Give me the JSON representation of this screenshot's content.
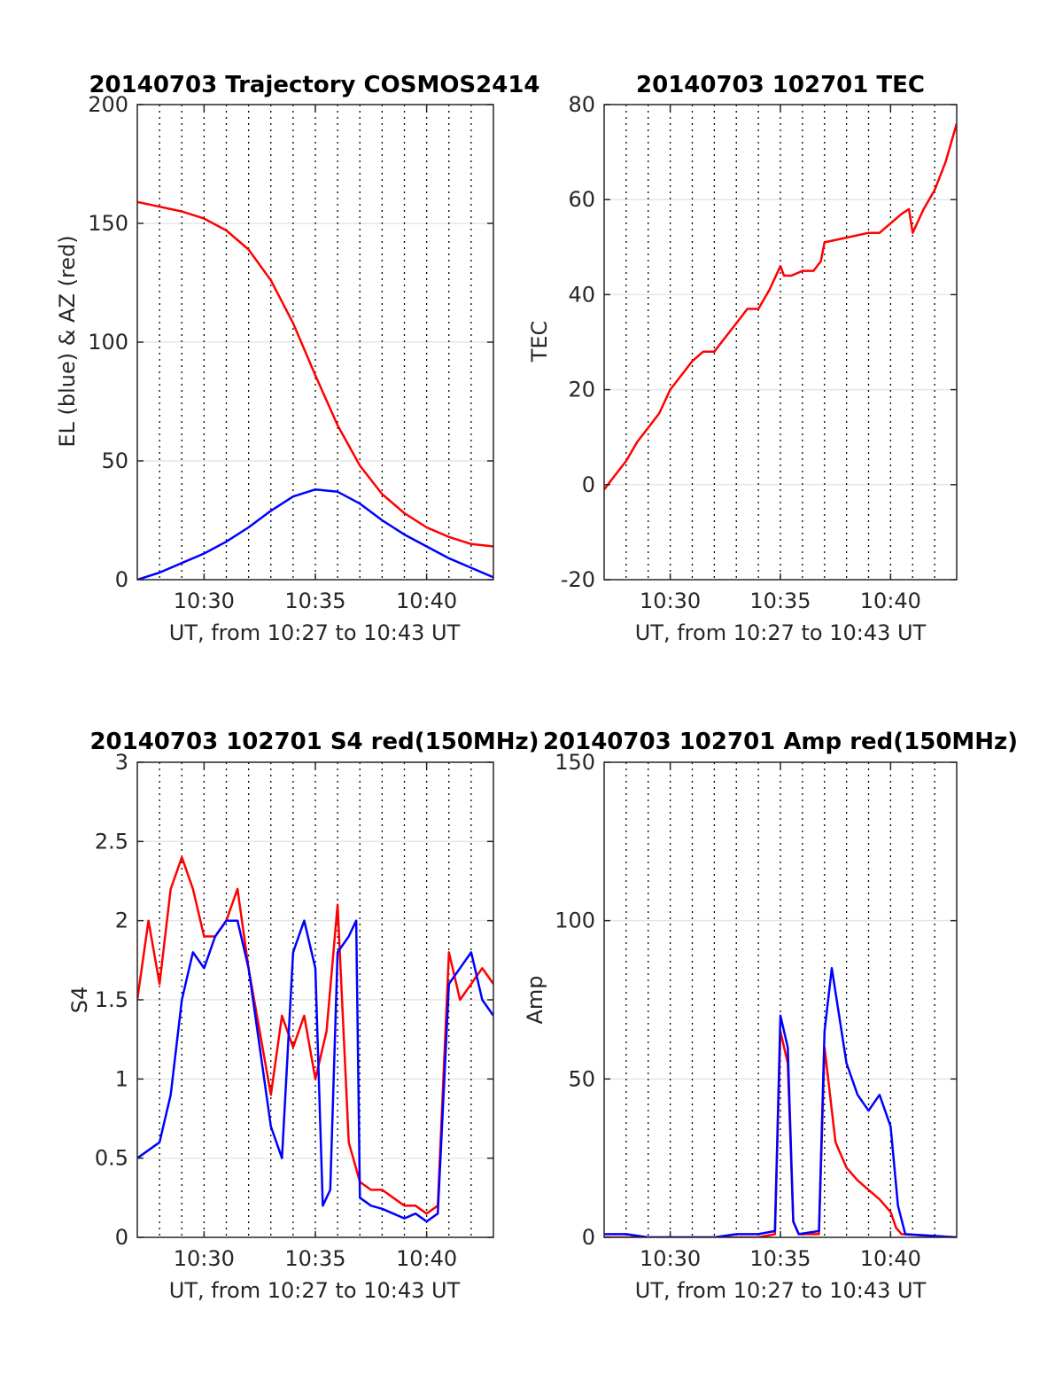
{
  "figure": {
    "background": "#ffffff",
    "grid_color": "#e6e6e6",
    "axis_color": "#262626"
  },
  "chart_data": [
    {
      "type": "line",
      "title": "20140703 Trajectory COSMOS2414",
      "xlabel": "UT, from 10:27 to 10:43 UT",
      "ylabel": "EL (blue) & AZ (red)",
      "xlim": [
        "10:27",
        "10:43"
      ],
      "ylim": [
        0,
        200
      ],
      "xticks": [
        "10:30",
        "10:35",
        "10:40"
      ],
      "yticks": [
        0,
        50,
        100,
        150,
        200
      ],
      "grid": true,
      "minor_time_grid_minutes": 1,
      "series": [
        {
          "color": "#ff0000",
          "x": [
            "10:27",
            "10:28",
            "10:29",
            "10:30",
            "10:31",
            "10:32",
            "10:33",
            "10:34",
            "10:35",
            "10:36",
            "10:37",
            "10:38",
            "10:39",
            "10:40",
            "10:41",
            "10:42",
            "10:43"
          ],
          "y": [
            159,
            157,
            155,
            152,
            147,
            139,
            126,
            108,
            86,
            65,
            48,
            36,
            28,
            22,
            18,
            15,
            14
          ]
        },
        {
          "color": "#0000ff",
          "x": [
            "10:27",
            "10:28",
            "10:29",
            "10:30",
            "10:31",
            "10:32",
            "10:33",
            "10:34",
            "10:35",
            "10:36",
            "10:37",
            "10:38",
            "10:39",
            "10:40",
            "10:41",
            "10:42",
            "10:43"
          ],
          "y": [
            0,
            3,
            7,
            11,
            16,
            22,
            29,
            35,
            38,
            37,
            32,
            25,
            19,
            14,
            9,
            5,
            1
          ]
        }
      ]
    },
    {
      "type": "line",
      "title": "20140703 102701 TEC",
      "xlabel": "UT, from 10:27 to 10:43 UT",
      "ylabel": "TEC",
      "xlim": [
        "10:27",
        "10:43"
      ],
      "ylim": [
        -20,
        80
      ],
      "xticks": [
        "10:30",
        "10:35",
        "10:40"
      ],
      "yticks": [
        -20,
        0,
        20,
        40,
        60,
        80
      ],
      "grid": true,
      "minor_time_grid_minutes": 1,
      "series": [
        {
          "color": "#ff0000",
          "x": [
            "10:27",
            "10:27:30",
            "10:28",
            "10:28:30",
            "10:29",
            "10:29:30",
            "10:30",
            "10:30:30",
            "10:31",
            "10:31:30",
            "10:32",
            "10:32:30",
            "10:33",
            "10:33:30",
            "10:34",
            "10:34:30",
            "10:35",
            "10:35:10",
            "10:35:30",
            "10:36",
            "10:36:30",
            "10:36:50",
            "10:37",
            "10:38",
            "10:39",
            "10:39:30",
            "10:40",
            "10:40:30",
            "10:40:50",
            "10:41",
            "10:41:30",
            "10:42",
            "10:42:30",
            "10:43"
          ],
          "y": [
            -1,
            2,
            5,
            9,
            12,
            15,
            20,
            23,
            26,
            28,
            28,
            31,
            34,
            37,
            37,
            41,
            46,
            44,
            44,
            45,
            45,
            47,
            51,
            52,
            53,
            53,
            55,
            57,
            58,
            53,
            58,
            62,
            68,
            76
          ]
        }
      ]
    },
    {
      "type": "line",
      "title": "20140703 102701 S4 red(150MHz)",
      "xlabel": "UT, from 10:27 to 10:43 UT",
      "ylabel": "S4",
      "xlim": [
        "10:27",
        "10:43"
      ],
      "ylim": [
        0,
        3
      ],
      "xticks": [
        "10:30",
        "10:35",
        "10:40"
      ],
      "yticks": [
        0,
        0.5,
        1,
        1.5,
        2,
        2.5,
        3
      ],
      "grid": true,
      "minor_time_grid_minutes": 1,
      "series": [
        {
          "color": "#ff0000",
          "x": [
            "10:27",
            "10:27:30",
            "10:28",
            "10:28:30",
            "10:29",
            "10:29:30",
            "10:30",
            "10:30:30",
            "10:31",
            "10:31:30",
            "10:32",
            "10:32:30",
            "10:33",
            "10:33:30",
            "10:34",
            "10:34:30",
            "10:35",
            "10:35:30",
            "10:36",
            "10:36:30",
            "10:37",
            "10:37:30",
            "10:38",
            "10:38:30",
            "10:39",
            "10:39:30",
            "10:40",
            "10:40:30",
            "10:41",
            "10:41:30",
            "10:42",
            "10:42:30",
            "10:43"
          ],
          "y": [
            1.5,
            2.0,
            1.6,
            2.2,
            2.4,
            2.2,
            1.9,
            1.9,
            2.0,
            2.2,
            1.7,
            1.3,
            0.9,
            1.4,
            1.2,
            1.4,
            1.0,
            1.3,
            2.1,
            0.6,
            0.35,
            0.3,
            0.3,
            0.25,
            0.2,
            0.2,
            0.15,
            0.2,
            1.8,
            1.5,
            1.6,
            1.7,
            1.6
          ]
        },
        {
          "color": "#0000ff",
          "x": [
            "10:27",
            "10:27:30",
            "10:28",
            "10:28:30",
            "10:29",
            "10:29:30",
            "10:30",
            "10:30:30",
            "10:31",
            "10:31:30",
            "10:32",
            "10:32:30",
            "10:33",
            "10:33:30",
            "10:34",
            "10:34:30",
            "10:35",
            "10:35:20",
            "10:35:40",
            "10:36",
            "10:36:30",
            "10:36:50",
            "10:37",
            "10:37:30",
            "10:38",
            "10:38:30",
            "10:39",
            "10:39:30",
            "10:40",
            "10:40:30",
            "10:41",
            "10:41:30",
            "10:42",
            "10:42:30",
            "10:43"
          ],
          "y": [
            0.5,
            0.55,
            0.6,
            0.9,
            1.5,
            1.8,
            1.7,
            1.9,
            2.0,
            2.0,
            1.7,
            1.2,
            0.7,
            0.5,
            1.8,
            2.0,
            1.7,
            0.2,
            0.3,
            1.8,
            1.9,
            2.0,
            0.25,
            0.2,
            0.18,
            0.15,
            0.12,
            0.15,
            0.1,
            0.15,
            1.6,
            1.7,
            1.8,
            1.5,
            1.4
          ]
        }
      ]
    },
    {
      "type": "line",
      "title": "20140703 102701 Amp red(150MHz)",
      "xlabel": "UT, from 10:27 to 10:43 UT",
      "ylabel": "Amp",
      "xlim": [
        "10:27",
        "10:43"
      ],
      "ylim": [
        0,
        150
      ],
      "xticks": [
        "10:30",
        "10:35",
        "10:40"
      ],
      "yticks": [
        0,
        50,
        100,
        150
      ],
      "grid": true,
      "minor_time_grid_minutes": 1,
      "series": [
        {
          "color": "#ff0000",
          "x": [
            "10:27",
            "10:34",
            "10:34:45",
            "10:35",
            "10:35:20",
            "10:35:35",
            "10:35:50",
            "10:36:45",
            "10:37",
            "10:37:30",
            "10:38",
            "10:38:30",
            "10:39",
            "10:39:30",
            "10:40",
            "10:40:15",
            "10:40:30",
            "10:43"
          ],
          "y": [
            0,
            0,
            1,
            65,
            55,
            5,
            1,
            1,
            60,
            30,
            22,
            18,
            15,
            12,
            8,
            3,
            1,
            0
          ]
        },
        {
          "color": "#0000ff",
          "x": [
            "10:27",
            "10:28",
            "10:29",
            "10:30",
            "10:31",
            "10:32",
            "10:33",
            "10:34",
            "10:34:45",
            "10:35",
            "10:35:20",
            "10:35:35",
            "10:35:50",
            "10:36:45",
            "10:37",
            "10:37:20",
            "10:37:40",
            "10:38",
            "10:38:30",
            "10:39",
            "10:39:30",
            "10:40",
            "10:40:20",
            "10:40:40",
            "10:43"
          ],
          "y": [
            1,
            1,
            0,
            0,
            0,
            0,
            1,
            1,
            2,
            70,
            60,
            5,
            1,
            2,
            65,
            85,
            70,
            55,
            45,
            40,
            45,
            35,
            10,
            1,
            0
          ]
        }
      ]
    }
  ]
}
